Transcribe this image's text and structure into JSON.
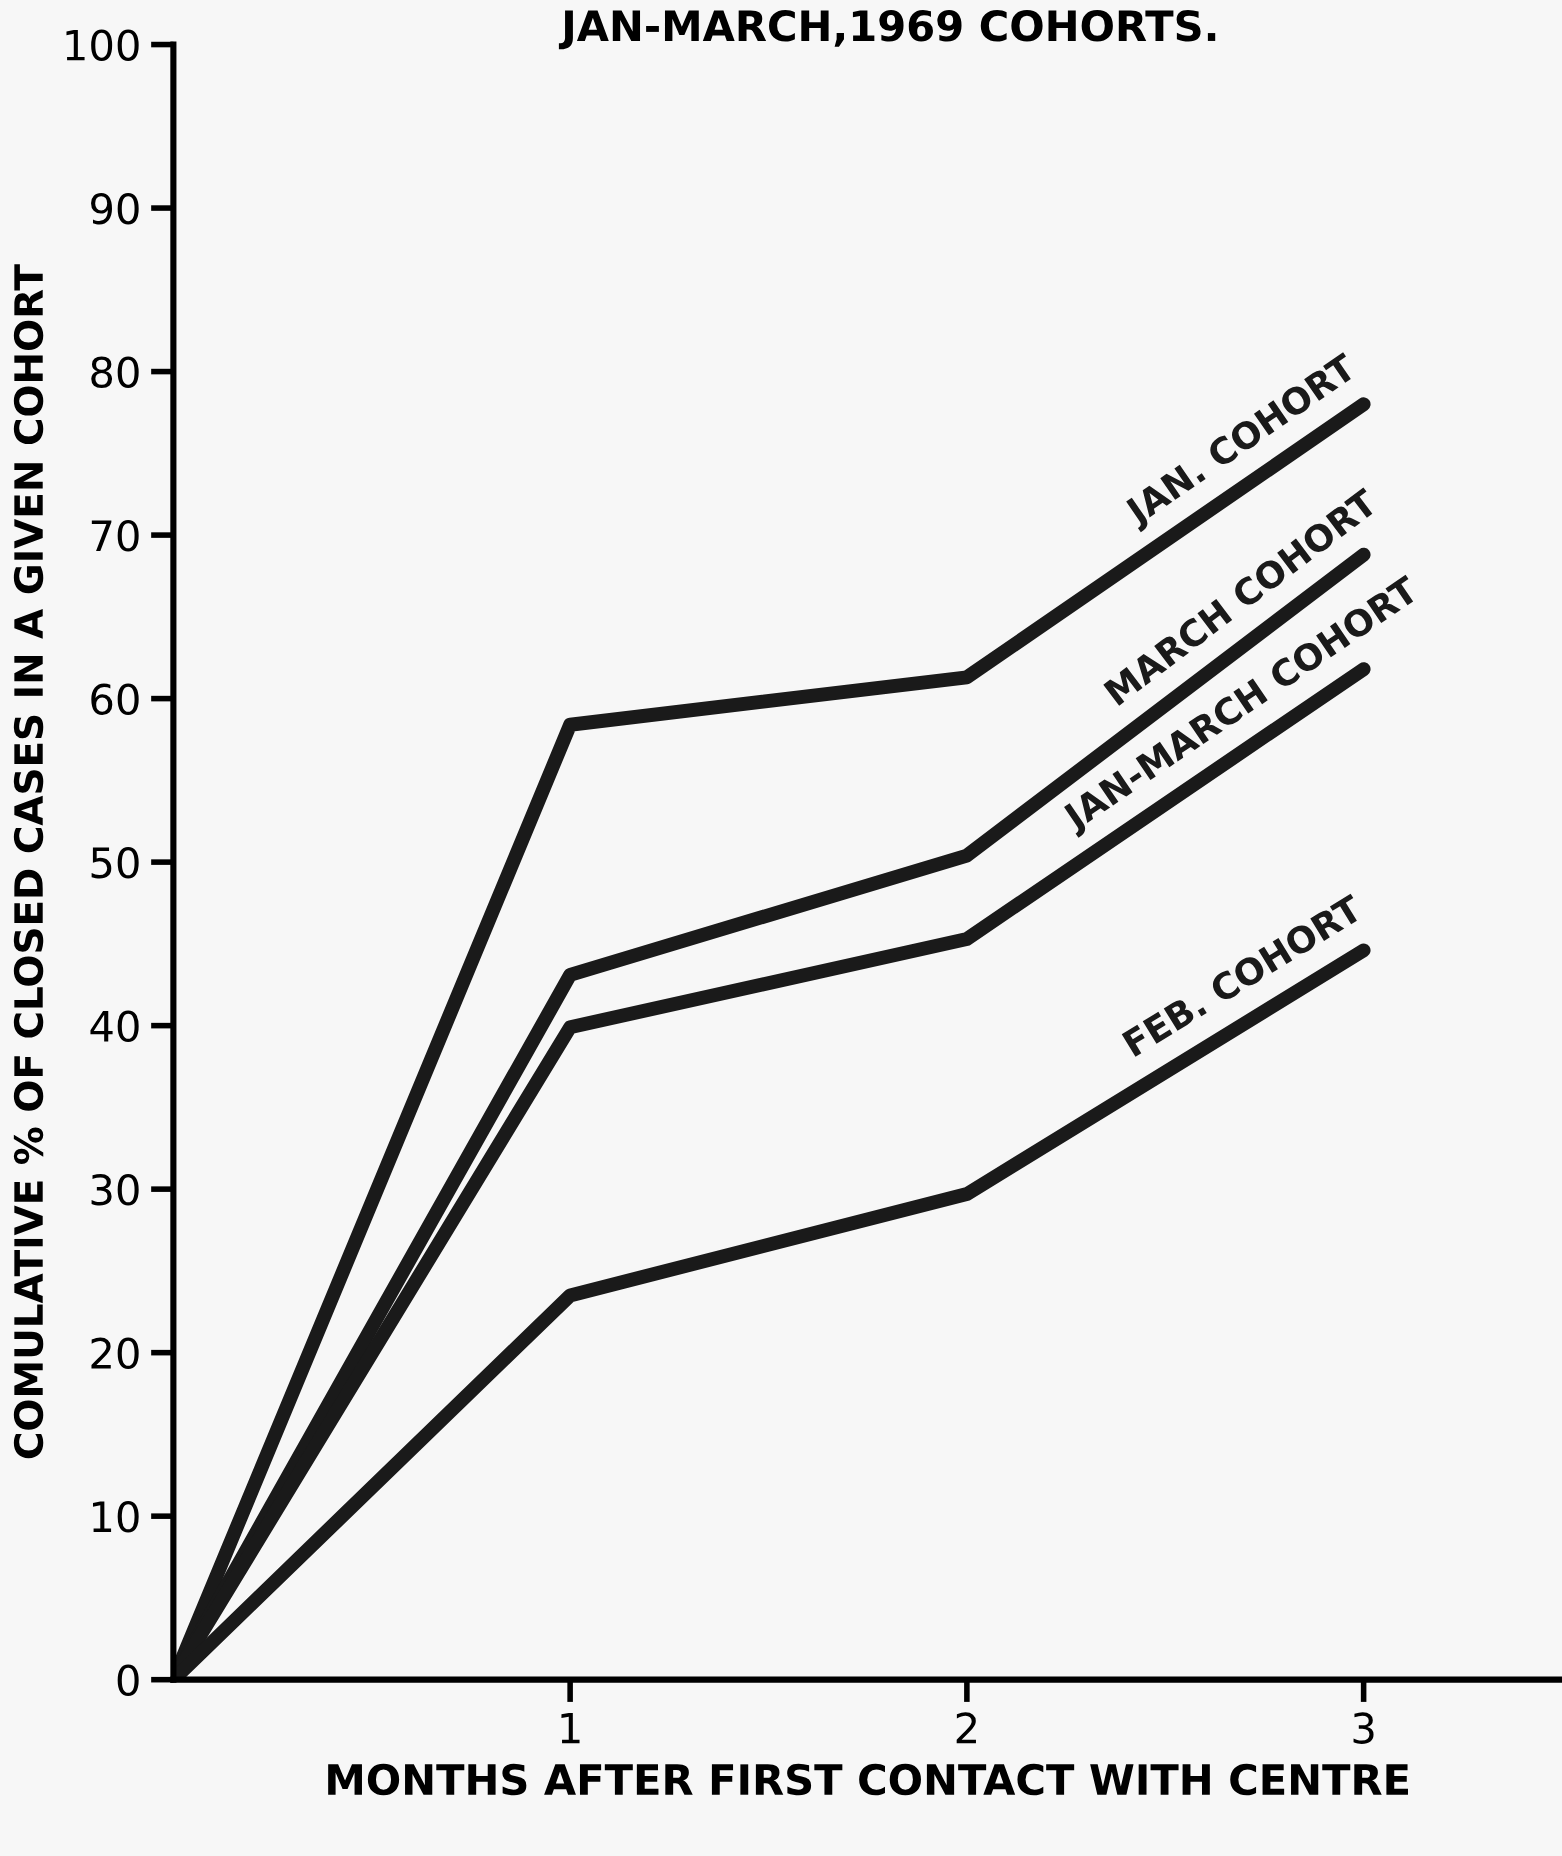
{
  "chart_data": {
    "type": "line",
    "title": "JAN-MARCH,1969 COHORTS.",
    "xlabel": "MONTHS AFTER FIRST CONTACT WITH CENTRE",
    "ylabel": "COMULATIVE % OF CLOSED CASES IN A GIVEN COHORT",
    "x": [
      0,
      1,
      2,
      3
    ],
    "series": [
      {
        "name": "JAN. COHORT",
        "color": "#1a1a1a",
        "values": [
          0,
          58.4,
          61.3,
          78.0
        ]
      },
      {
        "name": "MARCH COHORT",
        "color": "#1a1a1a",
        "values": [
          0,
          43.1,
          50.4,
          68.8
        ]
      },
      {
        "name": "JAN-MARCH COHORT",
        "color": "#1a1a1a",
        "values": [
          0,
          39.9,
          45.3,
          61.8
        ]
      },
      {
        "name": "FEB. COHORT",
        "color": "#1a1a1a",
        "values": [
          0,
          23.5,
          29.7,
          44.6
        ]
      }
    ],
    "xlim": [
      0,
      3.5
    ],
    "xticks": [
      1,
      2,
      3
    ],
    "ylim": [
      0,
      100
    ],
    "yticks": [
      0,
      10,
      20,
      30,
      40,
      50,
      60,
      70,
      80,
      90,
      100
    ],
    "grid": false,
    "legend": false,
    "marker": "none",
    "line_style": "solid"
  }
}
